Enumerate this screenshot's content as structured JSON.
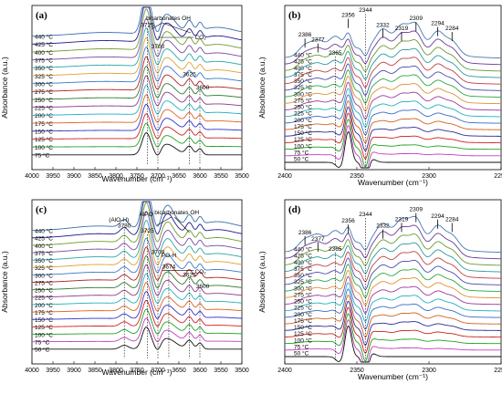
{
  "chart_data": [
    {
      "id": "a",
      "type": "line",
      "title": "(a)",
      "xlabel": "Wavenumber (cm⁻¹)",
      "ylabel": "Absorbance (a.u.)",
      "xlim": [
        4000,
        3500
      ],
      "x_ticks": [
        4000,
        3950,
        3900,
        3850,
        3800,
        3750,
        3700,
        3650,
        3600,
        3550,
        3500
      ],
      "series": [
        {
          "name": "440 °C",
          "color": "#3a6ea8"
        },
        {
          "name": "425 °C",
          "color": "#1a1a8c"
        },
        {
          "name": "400 °C",
          "color": "#6e9b2e"
        },
        {
          "name": "375 °C",
          "color": "#7a4aa0"
        },
        {
          "name": "350 °C",
          "color": "#2aa6a6"
        },
        {
          "name": "325 °C",
          "color": "#e0a030"
        },
        {
          "name": "300 °C",
          "color": "#3a78c8"
        },
        {
          "name": "275 °C",
          "color": "#b02020"
        },
        {
          "name": "250 °C",
          "color": "#2e7a2e"
        },
        {
          "name": "225 °C",
          "color": "#8a3a8a"
        },
        {
          "name": "200 °C",
          "color": "#20b0c0"
        },
        {
          "name": "175 °C",
          "color": "#e06020"
        },
        {
          "name": "150 °C",
          "color": "#3030c8"
        },
        {
          "name": "125 °C",
          "color": "#d02020"
        },
        {
          "name": "100 °C",
          "color": "#20a020"
        },
        {
          "name": "75 °C",
          "color": "#101010"
        }
      ],
      "peaks": [
        3725,
        3700,
        3625,
        3600
      ],
      "annotations": [
        "bicarbonates OH",
        "CO₂"
      ]
    },
    {
      "id": "b",
      "type": "line",
      "title": "(b)",
      "xlabel": "Wavenumber (cm⁻¹)",
      "ylabel": "Absorbance (a.u.)",
      "xlim": [
        2400,
        2250
      ],
      "x_ticks": [
        2400,
        2350,
        2300,
        2250
      ],
      "series": [
        {
          "name": "440 °C",
          "color": "#4a78b0"
        },
        {
          "name": "425 °C",
          "color": "#6a3a9a"
        },
        {
          "name": "400 °C",
          "color": "#6a9a30"
        },
        {
          "name": "375 °C",
          "color": "#2a9a9a"
        },
        {
          "name": "350 °C",
          "color": "#c04040"
        },
        {
          "name": "325 °C",
          "color": "#4a4ab0"
        },
        {
          "name": "300 °C",
          "color": "#2aa640"
        },
        {
          "name": "275 °C",
          "color": "#e09030"
        },
        {
          "name": "250 °C",
          "color": "#9a3a9a"
        },
        {
          "name": "225 °C",
          "color": "#20b0c0"
        },
        {
          "name": "200 °C",
          "color": "#3a6ac8"
        },
        {
          "name": "175 °C",
          "color": "#d06020"
        },
        {
          "name": "150 °C",
          "color": "#2a2a9a"
        },
        {
          "name": "125 °C",
          "color": "#d02020"
        },
        {
          "name": "100 °C",
          "color": "#20a020"
        },
        {
          "name": "75 °C",
          "color": "#c040c0"
        },
        {
          "name": "50 °C",
          "color": "#101010"
        }
      ],
      "peaks": [
        2386,
        2377,
        2365,
        2356,
        2344,
        2332,
        2319,
        2309,
        2294,
        2284
      ]
    },
    {
      "id": "c",
      "type": "line",
      "title": "(c)",
      "xlabel": "Wavenumber (cm⁻¹)",
      "ylabel": "Absorbance (a.u.)",
      "xlim": [
        4000,
        3500
      ],
      "x_ticks": [
        4000,
        3950,
        3900,
        3850,
        3800,
        3750,
        3700,
        3650,
        3600,
        3550,
        3500
      ],
      "series": [
        {
          "name": "440 °C",
          "color": "#3a6ea8"
        },
        {
          "name": "425 °C",
          "color": "#1a1a8c"
        },
        {
          "name": "400 °C",
          "color": "#6e9b2e"
        },
        {
          "name": "375 °C",
          "color": "#7a4aa0"
        },
        {
          "name": "350 °C",
          "color": "#2aa6a6"
        },
        {
          "name": "325 °C",
          "color": "#e0a030"
        },
        {
          "name": "300 °C",
          "color": "#3a78c8"
        },
        {
          "name": "275 °C",
          "color": "#b02020"
        },
        {
          "name": "250 °C",
          "color": "#2e7a2e"
        },
        {
          "name": "225 °C",
          "color": "#8a3a8a"
        },
        {
          "name": "200 °C",
          "color": "#20b0c0"
        },
        {
          "name": "175 °C",
          "color": "#e06020"
        },
        {
          "name": "150 °C",
          "color": "#3030c8"
        },
        {
          "name": "125 °C",
          "color": "#d02020"
        },
        {
          "name": "100 °C",
          "color": "#20a020"
        },
        {
          "name": "75 °C",
          "color": "#c040c0"
        },
        {
          "name": "50 °C",
          "color": "#101010"
        }
      ],
      "peaks": [
        3780,
        3725,
        3700,
        3674,
        3625,
        3600
      ],
      "annotations": [
        "(AlO-H)",
        "AlPO",
        "bicarbonates OH",
        "PO-H",
        "CO₂"
      ]
    },
    {
      "id": "d",
      "type": "line",
      "title": "(d)",
      "xlabel": "Wavenumber (cm⁻¹)",
      "ylabel": "Absorbance (a.u.)",
      "xlim": [
        2400,
        2250
      ],
      "x_ticks": [
        2400,
        2350,
        2300,
        2250
      ],
      "series": [
        {
          "name": "440 °C",
          "color": "#4a78b0"
        },
        {
          "name": "425 °C",
          "color": "#6a3a9a"
        },
        {
          "name": "400 °C",
          "color": "#6a9a30"
        },
        {
          "name": "375 °C",
          "color": "#2a9a9a"
        },
        {
          "name": "350 °C",
          "color": "#c04040"
        },
        {
          "name": "325 °C",
          "color": "#4a4ab0"
        },
        {
          "name": "300 °C",
          "color": "#2aa640"
        },
        {
          "name": "275 °C",
          "color": "#e09030"
        },
        {
          "name": "250 °C",
          "color": "#9a3a9a"
        },
        {
          "name": "225 °C",
          "color": "#20b0c0"
        },
        {
          "name": "200 °C",
          "color": "#3a6ac8"
        },
        {
          "name": "175 °C",
          "color": "#d06020"
        },
        {
          "name": "150 °C",
          "color": "#2a2a9a"
        },
        {
          "name": "125 °C",
          "color": "#d02020"
        },
        {
          "name": "100 °C",
          "color": "#20a020"
        },
        {
          "name": "75 °C",
          "color": "#c040c0"
        },
        {
          "name": "50 °C",
          "color": "#101010"
        }
      ],
      "peaks": [
        2386,
        2377,
        2365,
        2356,
        2344,
        2332,
        2319,
        2309,
        2294,
        2284
      ]
    }
  ]
}
